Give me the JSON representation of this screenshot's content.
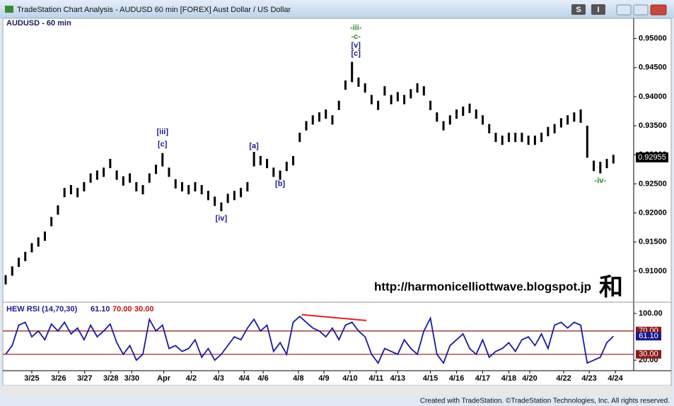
{
  "window": {
    "title": "TradeStation Chart Analysis - AUDUSD 60 min [FOREX] Aust Dollar / US Dollar",
    "buttons": [
      "S",
      "I"
    ],
    "footer": "Created with TradeStation. ©TradeStation Technologies, Inc. All rights reserved.",
    "watermark": "http://harmonicelliottwave.blogspot.jp",
    "logo": "和"
  },
  "chart_data": [
    {
      "type": "ohlc",
      "title": "AUDUSD - 60 min",
      "color": "#000000",
      "x": [
        0,
        1,
        2,
        3,
        4,
        5,
        6,
        7,
        8,
        9,
        10,
        11,
        12,
        13,
        14,
        15,
        16,
        17,
        18,
        19,
        20,
        21,
        22,
        23,
        24,
        25,
        26,
        27,
        28,
        29,
        30,
        31,
        32,
        33,
        34,
        35,
        36,
        37,
        38,
        39,
        40,
        41,
        42,
        43,
        44,
        45,
        46,
        47,
        48,
        49,
        50,
        51,
        52,
        53,
        54,
        55,
        56,
        57,
        58,
        59,
        60,
        61,
        62,
        63,
        64,
        65,
        66,
        67,
        68,
        69,
        70,
        71,
        72,
        73,
        74,
        75,
        76,
        77,
        78,
        79,
        80,
        81,
        82,
        83,
        84,
        85,
        86,
        87,
        88,
        89,
        90,
        91,
        92,
        93
      ],
      "high": [
        0.9093,
        0.9108,
        0.9123,
        0.9133,
        0.9148,
        0.9158,
        0.9168,
        0.9193,
        0.9213,
        0.9243,
        0.9248,
        0.9243,
        0.9253,
        0.9268,
        0.9273,
        0.9278,
        0.9293,
        0.9273,
        0.9263,
        0.9268,
        0.9253,
        0.9248,
        0.9268,
        0.9283,
        0.9303,
        0.9278,
        0.9258,
        0.9253,
        0.9248,
        0.9253,
        0.9248,
        0.9238,
        0.9228,
        0.9218,
        0.9233,
        0.9238,
        0.9243,
        0.9253,
        0.9305,
        0.9298,
        0.9293,
        0.9278,
        0.9273,
        0.9288,
        0.9298,
        0.9338,
        0.9358,
        0.9368,
        0.9373,
        0.9378,
        0.9368,
        0.9393,
        0.9428,
        0.946,
        0.9433,
        0.9423,
        0.9403,
        0.9393,
        0.9418,
        0.9403,
        0.9408,
        0.9403,
        0.9413,
        0.9423,
        0.9418,
        0.9393,
        0.9373,
        0.9358,
        0.9368,
        0.9378,
        0.9383,
        0.9388,
        0.9378,
        0.9368,
        0.9353,
        0.9338,
        0.9333,
        0.9338,
        0.9338,
        0.9338,
        0.9333,
        0.9333,
        0.9338,
        0.9348,
        0.9353,
        0.9363,
        0.9368,
        0.9373,
        0.9378,
        0.935,
        0.929,
        0.9288,
        0.9293,
        0.93
      ],
      "low": [
        0.9077,
        0.9092,
        0.9107,
        0.9117,
        0.9132,
        0.9142,
        0.9152,
        0.9177,
        0.9197,
        0.9227,
        0.9232,
        0.9227,
        0.9237,
        0.9252,
        0.9257,
        0.9262,
        0.9277,
        0.9257,
        0.9247,
        0.9252,
        0.9237,
        0.9232,
        0.9252,
        0.9267,
        0.928,
        0.9262,
        0.9242,
        0.9237,
        0.9232,
        0.9237,
        0.9232,
        0.9222,
        0.9212,
        0.9203,
        0.9217,
        0.9222,
        0.9227,
        0.9237,
        0.928,
        0.9282,
        0.9277,
        0.9262,
        0.9257,
        0.9272,
        0.9282,
        0.9322,
        0.9342,
        0.9352,
        0.9357,
        0.9362,
        0.9352,
        0.9377,
        0.9412,
        0.9425,
        0.9417,
        0.9407,
        0.9387,
        0.9377,
        0.9402,
        0.9387,
        0.9392,
        0.9387,
        0.9397,
        0.9407,
        0.9402,
        0.9377,
        0.9357,
        0.9342,
        0.9352,
        0.9362,
        0.9367,
        0.9372,
        0.9362,
        0.9352,
        0.9337,
        0.9322,
        0.9317,
        0.9322,
        0.9322,
        0.9322,
        0.9317,
        0.9317,
        0.9322,
        0.9332,
        0.9337,
        0.9347,
        0.9352,
        0.9357,
        0.9355,
        0.9295,
        0.9272,
        0.9268,
        0.9277,
        0.9285
      ],
      "xlim": [
        0,
        96
      ],
      "ylim": [
        0.905,
        0.9536
      ],
      "yticks": [
        {
          "value": 0.91,
          "label": "0.91000"
        },
        {
          "value": 0.915,
          "label": "0.91500"
        },
        {
          "value": 0.92,
          "label": "0.92000"
        },
        {
          "value": 0.925,
          "label": "0.92500"
        },
        {
          "value": 0.93,
          "label": "0.93000"
        },
        {
          "value": 0.935,
          "label": "0.93500"
        },
        {
          "value": 0.94,
          "label": "0.94000"
        },
        {
          "value": 0.945,
          "label": "0.94500"
        },
        {
          "value": 0.95,
          "label": "0.95000"
        }
      ],
      "last_price": {
        "value": 0.92955,
        "label": "0.92955"
      },
      "annotations": [
        {
          "text": "[iii]",
          "x": 24,
          "y": 0.9339,
          "color": "#1a1a8c"
        },
        {
          "text": "[c]",
          "x": 24,
          "y": 0.9318,
          "color": "#1a1a8c"
        },
        {
          "text": "[iv]",
          "x": 33,
          "y": 0.919,
          "color": "#1a1a8c"
        },
        {
          "text": "[a]",
          "x": 38,
          "y": 0.9315,
          "color": "#1a1a8c"
        },
        {
          "text": "[b]",
          "x": 42,
          "y": 0.925,
          "color": "#1a1a8c"
        },
        {
          "text": "-iii-",
          "x": 53.6,
          "y": 0.9518,
          "color": "#2a8a2a"
        },
        {
          "text": "-c-",
          "x": 53.6,
          "y": 0.9503,
          "color": "#2a8a2a"
        },
        {
          "text": "[v]",
          "x": 53.6,
          "y": 0.9488,
          "color": "#1a1a8c"
        },
        {
          "text": "[c]",
          "x": 53.6,
          "y": 0.9474,
          "color": "#1a1a8c"
        },
        {
          "text": "-iv-",
          "x": 91,
          "y": 0.9255,
          "color": "#2a8a2a"
        }
      ]
    },
    {
      "type": "line",
      "title": "HEW RSI (14,70,30)",
      "color": "#1a1aa0",
      "x": [
        0,
        1,
        2,
        3,
        4,
        5,
        6,
        7,
        8,
        9,
        10,
        11,
        12,
        13,
        14,
        15,
        16,
        17,
        18,
        19,
        20,
        21,
        22,
        23,
        24,
        25,
        26,
        27,
        28,
        29,
        30,
        31,
        32,
        33,
        34,
        35,
        36,
        37,
        38,
        39,
        40,
        41,
        42,
        43,
        44,
        45,
        46,
        47,
        48,
        49,
        50,
        51,
        52,
        53,
        54,
        55,
        56,
        57,
        58,
        59,
        60,
        61,
        62,
        63,
        64,
        65,
        66,
        67,
        68,
        69,
        70,
        71,
        72,
        73,
        74,
        75,
        76,
        77,
        78,
        79,
        80,
        81,
        82,
        83,
        84,
        85,
        86,
        87,
        88,
        89,
        90,
        91,
        92,
        93
      ],
      "values": [
        30,
        45,
        80,
        85,
        60,
        70,
        55,
        82,
        70,
        85,
        65,
        75,
        55,
        80,
        60,
        70,
        82,
        50,
        30,
        45,
        20,
        30,
        90,
        70,
        80,
        40,
        45,
        35,
        40,
        55,
        25,
        40,
        20,
        30,
        45,
        60,
        55,
        75,
        90,
        70,
        80,
        35,
        50,
        30,
        85,
        95,
        85,
        75,
        70,
        60,
        75,
        55,
        80,
        85,
        70,
        60,
        30,
        15,
        40,
        35,
        30,
        55,
        40,
        30,
        70,
        92,
        30,
        15,
        45,
        55,
        65,
        40,
        30,
        55,
        25,
        35,
        40,
        50,
        35,
        55,
        60,
        45,
        65,
        40,
        80,
        85,
        75,
        85,
        80,
        15,
        20,
        25,
        50,
        61.1
      ],
      "xlim": [
        0,
        96
      ],
      "ylim": [
        8,
        114.5
      ],
      "yticks": [
        {
          "value": 100,
          "label": "100.00"
        },
        {
          "value": 20,
          "label": "20.00"
        }
      ],
      "current": {
        "value": 61.1,
        "label": "61.10"
      },
      "levels": [
        {
          "value": 70,
          "label": "70.00",
          "color": "#8b1a1a"
        },
        {
          "value": 30,
          "label": "30.00",
          "color": "#8b1a1a"
        }
      ],
      "trendline": {
        "x": [
          45.3,
          55.2
        ],
        "values": [
          98,
          88
        ],
        "color": "#e02020"
      },
      "xticks": [
        {
          "value": 4,
          "label": "3/25"
        },
        {
          "value": 8.1,
          "label": "3/26"
        },
        {
          "value": 12.1,
          "label": "3/27"
        },
        {
          "value": 16.1,
          "label": "3/28"
        },
        {
          "value": 19.3,
          "label": "3/30"
        },
        {
          "value": 24.2,
          "label": "Apr"
        },
        {
          "value": 28.4,
          "label": "4/2"
        },
        {
          "value": 32.6,
          "label": "4/3"
        },
        {
          "value": 36.5,
          "label": "4/4"
        },
        {
          "value": 39.4,
          "label": "4/6"
        },
        {
          "value": 44.8,
          "label": "4/8"
        },
        {
          "value": 48.7,
          "label": "4/9"
        },
        {
          "value": 52.7,
          "label": "4/10"
        },
        {
          "value": 56.7,
          "label": "4/11"
        },
        {
          "value": 60,
          "label": "4/13"
        },
        {
          "value": 65,
          "label": "4/15"
        },
        {
          "value": 69,
          "label": "4/16"
        },
        {
          "value": 73,
          "label": "4/17"
        },
        {
          "value": 77,
          "label": "4/18"
        },
        {
          "value": 80.2,
          "label": "4/20"
        },
        {
          "value": 85.4,
          "label": "4/22"
        },
        {
          "value": 89.3,
          "label": "4/23"
        },
        {
          "value": 93.3,
          "label": "4/24"
        }
      ]
    }
  ]
}
